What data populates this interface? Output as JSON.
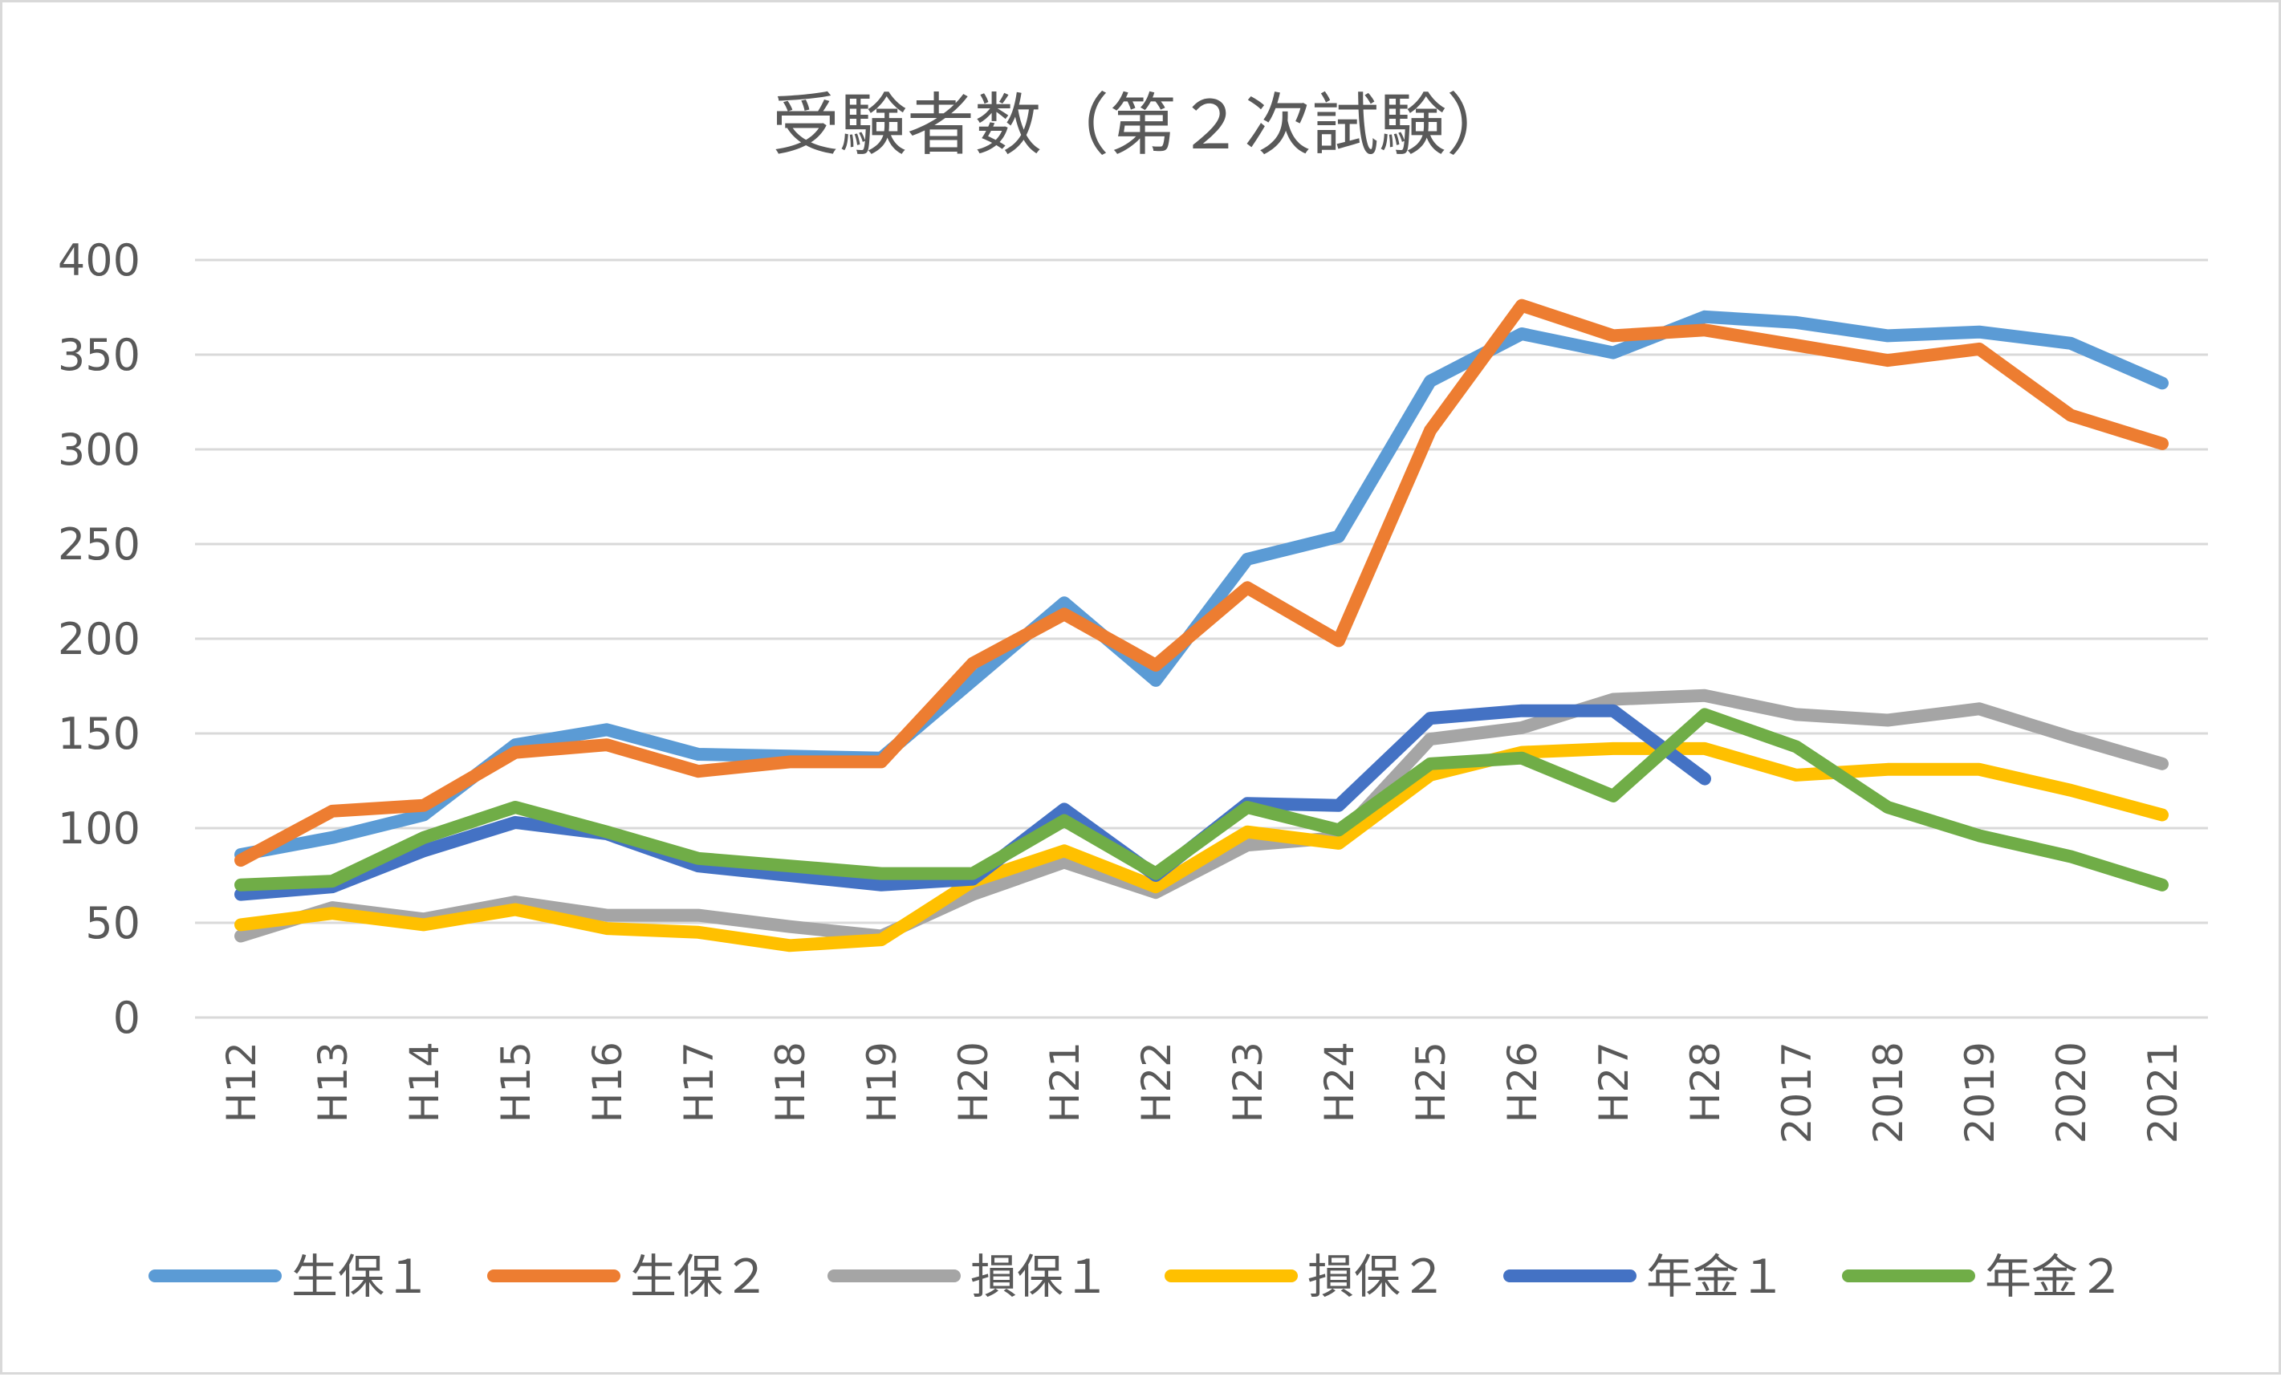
{
  "chart_data": {
    "type": "line",
    "title": "受験者数（第２次試験）",
    "xlabel": "",
    "ylabel": "",
    "ylim": [
      0,
      400
    ],
    "yticks": [
      0,
      50,
      100,
      150,
      200,
      250,
      300,
      350,
      400
    ],
    "grid": true,
    "legend_position": "bottom",
    "categories": [
      "H12",
      "H13",
      "H14",
      "H15",
      "H16",
      "H17",
      "H18",
      "H19",
      "H20",
      "H21",
      "H22",
      "H23",
      "H24",
      "H25",
      "H26",
      "H27",
      "H28",
      "2017",
      "2018",
      "2019",
      "2020",
      "2021"
    ],
    "series": [
      {
        "name": "生保１",
        "color": "#5b9bd5",
        "values": [
          86,
          95,
          107,
          144,
          152,
          139,
          138,
          137,
          178,
          219,
          178,
          242,
          254,
          336,
          361,
          351,
          370,
          367,
          360,
          362,
          356,
          335
        ]
      },
      {
        "name": "生保２",
        "color": "#ed7d31",
        "values": [
          83,
          109,
          112,
          140,
          144,
          130,
          135,
          135,
          187,
          213,
          186,
          227,
          199,
          310,
          376,
          360,
          363,
          355,
          347,
          353,
          318,
          303
        ]
      },
      {
        "name": "損保１",
        "color": "#a5a5a5",
        "values": [
          43,
          58,
          52,
          61,
          54,
          54,
          48,
          43,
          65,
          82,
          66,
          91,
          95,
          147,
          153,
          168,
          170,
          160,
          157,
          163,
          148,
          134
        ]
      },
      {
        "name": "損保２",
        "color": "#ffc000",
        "values": [
          49,
          55,
          49,
          57,
          47,
          45,
          38,
          41,
          72,
          88,
          69,
          98,
          92,
          128,
          140,
          142,
          142,
          128,
          131,
          131,
          120,
          107
        ]
      },
      {
        "name": "年金１",
        "color": "#4472c4",
        "values": [
          65,
          69,
          88,
          103,
          97,
          80,
          75,
          70,
          73,
          110,
          75,
          113,
          112,
          158,
          162,
          162,
          126,
          null,
          null,
          null,
          null,
          null
        ]
      },
      {
        "name": "年金２",
        "color": "#70ad47",
        "values": [
          70,
          72,
          95,
          111,
          98,
          84,
          80,
          76,
          76,
          104,
          76,
          111,
          99,
          134,
          137,
          117,
          160,
          143,
          111,
          96,
          85,
          70
        ]
      }
    ]
  }
}
